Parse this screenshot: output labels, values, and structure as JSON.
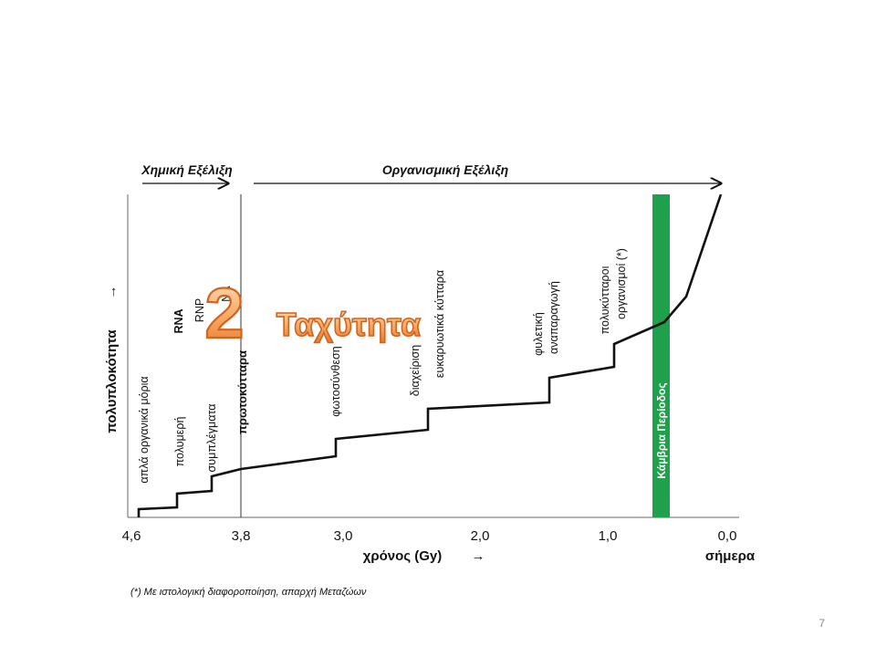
{
  "header": {
    "left_label": "Χημική Εξέλιξη",
    "right_label": "Οργανισμική Εξέλιξη"
  },
  "axes": {
    "y_label": "πολυπλοκότητα",
    "y_arrow": "→",
    "x_label": "χρόνος  (Gy)",
    "x_arrow": "→",
    "today_label": "σήμερα",
    "ticks": [
      "4,6",
      "3,8",
      "3,0",
      "2,0",
      "1,0",
      "0,0"
    ]
  },
  "annotations": {
    "simple_molecules": "απλά οργανικά μόρια",
    "polymers": "πολυμερή",
    "complexes": "συμπλέγματα",
    "rna": "RNA",
    "rnp": "RNP",
    "dna_partial": "NA",
    "protocells": "πρωτοκύτταρα",
    "photosynthesis": "φωτοσύνθεση",
    "management": "διαχείριση",
    "eukaryotic": "ευκαρυωτικά κύτταρα",
    "sexual": "φυλετική",
    "reproduction": "αναπαραγωγή",
    "multicellular": "πολυκύτταροι",
    "organisms": "οργανισμοί (*)"
  },
  "cambrian_label": "Κάμβρια Περίοδος",
  "overlay": {
    "number": "2",
    "word": "Ταχύτητα"
  },
  "footnote": "(*) Με ιστολογική διαφοροποίηση, απαρχή Μεταζώων",
  "page_number": "7",
  "colors": {
    "cambrian_green": "#1fa04a",
    "overlay_orange": "#f5a35a",
    "overlay_outline": "#d0651e"
  }
}
